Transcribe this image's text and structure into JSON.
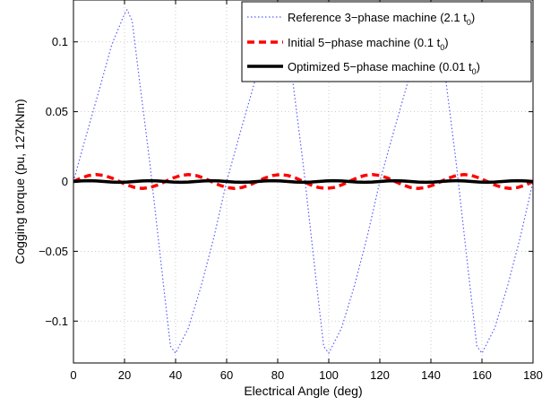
{
  "chart_data": {
    "type": "line",
    "xlabel": "Electrical Angle (deg)",
    "ylabel": "Cogging torque (pu, 127kNm)",
    "xlim": [
      0,
      180
    ],
    "ylim": [
      -0.13,
      0.13
    ],
    "xticks": [
      0,
      20,
      40,
      60,
      80,
      100,
      120,
      140,
      160,
      180
    ],
    "yticks": [
      -0.1,
      -0.05,
      0,
      0.05,
      0.1
    ],
    "xtick_labels": [
      "0",
      "20",
      "40",
      "60",
      "80",
      "100",
      "120",
      "140",
      "160",
      "180"
    ],
    "ytick_labels": [
      "−0.1",
      "−0.05",
      "0",
      "0.05",
      "0.1"
    ],
    "grid": true,
    "legend_position": "top-right",
    "series": [
      {
        "name": "Reference 3−phase machine (2.1 t",
        "sub": "0",
        "suffix": ")",
        "style": "dotted",
        "color": "#5a5aff",
        "x": [
          0,
          5,
          10,
          15,
          20,
          21,
          23,
          25,
          30,
          35,
          38,
          40,
          45,
          50,
          55,
          60,
          65,
          70,
          75,
          80,
          81,
          83,
          85,
          90,
          95,
          98,
          100,
          105,
          110,
          115,
          120,
          125,
          130,
          135,
          140,
          141,
          143,
          145,
          150,
          155,
          158,
          160,
          165,
          170,
          175,
          180
        ],
        "y": [
          0.0,
          0.033,
          0.065,
          0.098,
          0.12,
          0.123,
          0.115,
          0.085,
          0.012,
          -0.07,
          -0.118,
          -0.123,
          -0.105,
          -0.075,
          -0.04,
          0.0,
          0.033,
          0.065,
          0.098,
          0.12,
          0.123,
          0.115,
          0.085,
          0.012,
          -0.07,
          -0.118,
          -0.123,
          -0.105,
          -0.075,
          -0.04,
          0.0,
          0.033,
          0.065,
          0.098,
          0.12,
          0.123,
          0.115,
          0.085,
          0.012,
          -0.07,
          -0.118,
          -0.123,
          -0.105,
          -0.075,
          -0.04,
          0.0
        ]
      },
      {
        "name": "Initial 5−phase machine (0.1 t",
        "sub": "0",
        "suffix": ")",
        "style": "dashed",
        "color": "#ff0000",
        "x": [
          0,
          3,
          6,
          9,
          12,
          15,
          18,
          21,
          24,
          27,
          30,
          33,
          36,
          39,
          42,
          45,
          48,
          51,
          54,
          57,
          60,
          63,
          66,
          69,
          72,
          75,
          78,
          81,
          84,
          87,
          90,
          93,
          96,
          99,
          102,
          105,
          108,
          111,
          114,
          117,
          120,
          123,
          126,
          129,
          132,
          135,
          138,
          141,
          144,
          147,
          150,
          153,
          156,
          159,
          162,
          165,
          168,
          171,
          174,
          177,
          180
        ],
        "y": [
          0.0,
          0.0025,
          0.0043,
          0.005,
          0.0043,
          0.0025,
          0.0,
          -0.0025,
          -0.0043,
          -0.005,
          -0.0043,
          -0.0025,
          0.0,
          0.0025,
          0.0043,
          0.005,
          0.0043,
          0.0025,
          0.0,
          -0.0025,
          -0.0043,
          -0.005,
          -0.0043,
          -0.0025,
          0.0,
          0.0025,
          0.0043,
          0.005,
          0.0043,
          0.0025,
          0.0,
          -0.0025,
          -0.0043,
          -0.005,
          -0.0043,
          -0.0025,
          0.0,
          0.0025,
          0.0043,
          0.005,
          0.0043,
          0.0025,
          0.0,
          -0.0025,
          -0.0043,
          -0.005,
          -0.0043,
          -0.0025,
          0.0,
          0.0025,
          0.0043,
          0.005,
          0.0043,
          0.0025,
          0.0,
          -0.0025,
          -0.0043,
          -0.005,
          -0.0043,
          -0.0025,
          0.0
        ]
      },
      {
        "name": "Optimized 5−phase machine (0.01 t",
        "sub": "0",
        "suffix": ")",
        "style": "solid",
        "color": "#000000",
        "x": [
          0,
          3,
          6,
          9,
          12,
          15,
          18,
          21,
          24,
          27,
          30,
          33,
          36,
          39,
          42,
          45,
          48,
          51,
          54,
          57,
          60,
          63,
          66,
          69,
          72,
          75,
          78,
          81,
          84,
          87,
          90,
          93,
          96,
          99,
          102,
          105,
          108,
          111,
          114,
          117,
          120,
          123,
          126,
          129,
          132,
          135,
          138,
          141,
          144,
          147,
          150,
          153,
          156,
          159,
          162,
          165,
          168,
          171,
          174,
          177,
          180
        ],
        "y": [
          0.0,
          0.0004,
          0.0006,
          0.0004,
          0.0,
          -0.0004,
          -0.0006,
          -0.0004,
          0.0,
          0.0004,
          0.0006,
          0.0004,
          0.0,
          -0.0004,
          -0.0006,
          -0.0004,
          0.0,
          0.0004,
          0.0006,
          0.0004,
          0.0,
          -0.0004,
          -0.0006,
          -0.0004,
          0.0,
          0.0004,
          0.0006,
          0.0004,
          0.0,
          -0.0004,
          -0.0006,
          -0.0004,
          0.0,
          0.0004,
          0.0006,
          0.0004,
          0.0,
          -0.0004,
          -0.0006,
          -0.0004,
          0.0,
          0.0004,
          0.0006,
          0.0004,
          0.0,
          -0.0004,
          -0.0006,
          -0.0004,
          0.0,
          0.0004,
          0.0006,
          0.0004,
          0.0,
          -0.0004,
          -0.0006,
          -0.0004,
          0.0,
          0.0004,
          0.0006,
          0.0004,
          0.0
        ]
      }
    ]
  }
}
